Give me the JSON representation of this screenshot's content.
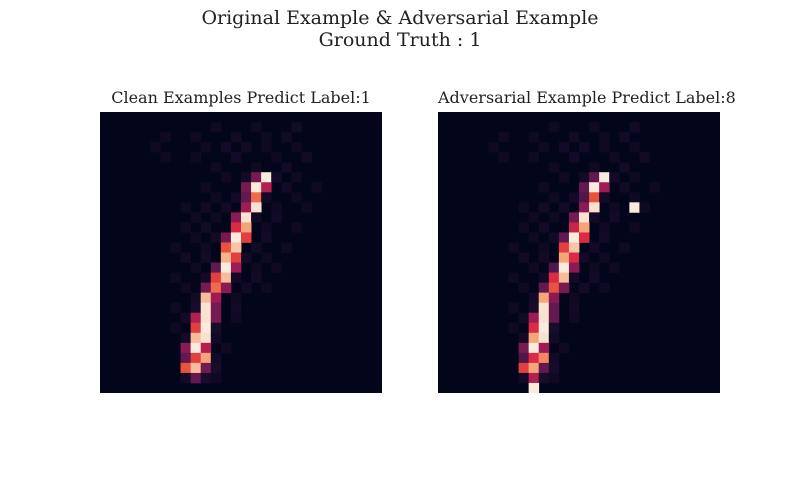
{
  "title_line1": "Original Example & Adversarial Example",
  "title_line2": "Ground Truth : 1",
  "colors": {
    "colormap": "rocket",
    "low": "#03051a",
    "mid": "#cb1b4f",
    "high": "#faebdd"
  },
  "chart_data": [
    {
      "type": "heatmap",
      "title": "Clean Examples Predict Label:1",
      "rows": 28,
      "cols": 28,
      "value_range": [
        0,
        1
      ],
      "axes_visible": false,
      "background_value": 0,
      "cells": [
        [
          1,
          11,
          0.05
        ],
        [
          1,
          15,
          0.05
        ],
        [
          1,
          19,
          0.06
        ],
        [
          2,
          6,
          0.05
        ],
        [
          2,
          9,
          0.05
        ],
        [
          2,
          13,
          0.06
        ],
        [
          2,
          16,
          0.05
        ],
        [
          2,
          18,
          0.06
        ],
        [
          3,
          5,
          0.05
        ],
        [
          3,
          10,
          0.05
        ],
        [
          3,
          12,
          0.06
        ],
        [
          3,
          14,
          0.06
        ],
        [
          3,
          16,
          0.05
        ],
        [
          3,
          19,
          0.05
        ],
        [
          4,
          6,
          0.05
        ],
        [
          4,
          9,
          0.05
        ],
        [
          4,
          13,
          0.06
        ],
        [
          4,
          17,
          0.05
        ],
        [
          4,
          20,
          0.06
        ],
        [
          5,
          11,
          0.05
        ],
        [
          5,
          15,
          0.05
        ],
        [
          5,
          18,
          0.06
        ],
        [
          6,
          12,
          0.05
        ],
        [
          6,
          14,
          0.06
        ],
        [
          6,
          15,
          0.35
        ],
        [
          6,
          16,
          1.0
        ],
        [
          6,
          17,
          0.06
        ],
        [
          6,
          19,
          0.05
        ],
        [
          7,
          10,
          0.05
        ],
        [
          7,
          14,
          0.35
        ],
        [
          7,
          15,
          1.0
        ],
        [
          7,
          16,
          0.5
        ],
        [
          7,
          18,
          0.06
        ],
        [
          7,
          21,
          0.05
        ],
        [
          8,
          11,
          0.05
        ],
        [
          8,
          13,
          0.06
        ],
        [
          8,
          14,
          0.3
        ],
        [
          8,
          15,
          0.75
        ],
        [
          8,
          16,
          0.06
        ],
        [
          8,
          19,
          0.05
        ],
        [
          9,
          8,
          0.05
        ],
        [
          9,
          10,
          0.06
        ],
        [
          9,
          12,
          0.06
        ],
        [
          9,
          14,
          0.45
        ],
        [
          9,
          15,
          0.98
        ],
        [
          9,
          17,
          0.05
        ],
        [
          9,
          20,
          0.05
        ],
        [
          10,
          9,
          0.05
        ],
        [
          10,
          11,
          0.05
        ],
        [
          10,
          13,
          0.4
        ],
        [
          10,
          14,
          0.98
        ],
        [
          10,
          15,
          0.06
        ],
        [
          10,
          17,
          0.06
        ],
        [
          11,
          8,
          0.05
        ],
        [
          11,
          10,
          0.06
        ],
        [
          11,
          13,
          0.6
        ],
        [
          11,
          14,
          0.85
        ],
        [
          11,
          16,
          0.05
        ],
        [
          11,
          19,
          0.05
        ],
        [
          12,
          9,
          0.05
        ],
        [
          12,
          11,
          0.06
        ],
        [
          12,
          12,
          0.35
        ],
        [
          12,
          13,
          1.0
        ],
        [
          12,
          14,
          0.65
        ],
        [
          12,
          16,
          0.06
        ],
        [
          13,
          7,
          0.05
        ],
        [
          13,
          10,
          0.05
        ],
        [
          13,
          12,
          0.7
        ],
        [
          13,
          13,
          0.92
        ],
        [
          13,
          15,
          0.06
        ],
        [
          13,
          18,
          0.05
        ],
        [
          14,
          8,
          0.06
        ],
        [
          14,
          10,
          0.06
        ],
        [
          14,
          12,
          0.88
        ],
        [
          14,
          13,
          0.65
        ],
        [
          14,
          14,
          0.06
        ],
        [
          14,
          16,
          0.05
        ],
        [
          15,
          9,
          0.05
        ],
        [
          15,
          11,
          0.3
        ],
        [
          15,
          12,
          1.0
        ],
        [
          15,
          13,
          0.45
        ],
        [
          15,
          15,
          0.05
        ],
        [
          15,
          17,
          0.05
        ],
        [
          16,
          7,
          0.05
        ],
        [
          16,
          10,
          0.06
        ],
        [
          16,
          11,
          0.65
        ],
        [
          16,
          12,
          0.9
        ],
        [
          16,
          13,
          0.06
        ],
        [
          16,
          15,
          0.06
        ],
        [
          17,
          8,
          0.05
        ],
        [
          17,
          10,
          0.35
        ],
        [
          17,
          11,
          0.75
        ],
        [
          17,
          12,
          0.4
        ],
        [
          17,
          14,
          0.06
        ],
        [
          17,
          16,
          0.05
        ],
        [
          18,
          9,
          0.06
        ],
        [
          18,
          10,
          0.9
        ],
        [
          18,
          11,
          0.45
        ],
        [
          18,
          13,
          0.05
        ],
        [
          19,
          7,
          0.05
        ],
        [
          19,
          9,
          0.08
        ],
        [
          19,
          10,
          0.98
        ],
        [
          19,
          11,
          0.35
        ],
        [
          19,
          13,
          0.06
        ],
        [
          20,
          8,
          0.06
        ],
        [
          20,
          9,
          0.5
        ],
        [
          20,
          10,
          0.98
        ],
        [
          20,
          11,
          0.35
        ],
        [
          20,
          13,
          0.05
        ],
        [
          21,
          7,
          0.05
        ],
        [
          21,
          9,
          0.65
        ],
        [
          21,
          10,
          1.0
        ],
        [
          21,
          11,
          0.08
        ],
        [
          22,
          8,
          0.06
        ],
        [
          22,
          9,
          0.9
        ],
        [
          22,
          10,
          0.98
        ],
        [
          22,
          11,
          0.06
        ],
        [
          23,
          8,
          0.4
        ],
        [
          23,
          9,
          1.0
        ],
        [
          23,
          10,
          0.5
        ],
        [
          23,
          12,
          0.05
        ],
        [
          24,
          8,
          0.3
        ],
        [
          24,
          9,
          0.65
        ],
        [
          24,
          10,
          0.85
        ],
        [
          24,
          11,
          0.06
        ],
        [
          25,
          8,
          0.7
        ],
        [
          25,
          9,
          0.9
        ],
        [
          25,
          10,
          0.35
        ],
        [
          25,
          11,
          0.08
        ],
        [
          26,
          8,
          0.06
        ],
        [
          26,
          9,
          0.3
        ],
        [
          26,
          10,
          0.08
        ],
        [
          26,
          11,
          0.05
        ]
      ]
    },
    {
      "type": "heatmap",
      "title": "Adversarial Example Predict Label:8",
      "rows": 28,
      "cols": 28,
      "value_range": [
        0,
        1
      ],
      "axes_visible": false,
      "background_value": 0,
      "cells": [
        [
          1,
          11,
          0.05
        ],
        [
          1,
          15,
          0.05
        ],
        [
          1,
          19,
          0.06
        ],
        [
          2,
          6,
          0.05
        ],
        [
          2,
          9,
          0.05
        ],
        [
          2,
          13,
          0.06
        ],
        [
          2,
          16,
          0.05
        ],
        [
          2,
          18,
          0.06
        ],
        [
          3,
          5,
          0.05
        ],
        [
          3,
          10,
          0.05
        ],
        [
          3,
          12,
          0.06
        ],
        [
          3,
          14,
          0.06
        ],
        [
          3,
          16,
          0.05
        ],
        [
          3,
          19,
          0.05
        ],
        [
          4,
          6,
          0.05
        ],
        [
          4,
          9,
          0.05
        ],
        [
          4,
          13,
          0.06
        ],
        [
          4,
          17,
          0.05
        ],
        [
          4,
          20,
          0.06
        ],
        [
          5,
          11,
          0.05
        ],
        [
          5,
          15,
          0.05
        ],
        [
          5,
          18,
          0.06
        ],
        [
          6,
          12,
          0.05
        ],
        [
          6,
          14,
          0.06
        ],
        [
          6,
          15,
          0.3
        ],
        [
          6,
          16,
          1.0
        ],
        [
          6,
          17,
          0.06
        ],
        [
          6,
          19,
          0.05
        ],
        [
          7,
          10,
          0.05
        ],
        [
          7,
          14,
          0.3
        ],
        [
          7,
          15,
          1.0
        ],
        [
          7,
          16,
          0.45
        ],
        [
          7,
          18,
          0.06
        ],
        [
          7,
          21,
          0.05
        ],
        [
          8,
          11,
          0.05
        ],
        [
          8,
          13,
          0.06
        ],
        [
          8,
          14,
          0.25
        ],
        [
          8,
          15,
          0.7
        ],
        [
          8,
          16,
          0.06
        ],
        [
          8,
          19,
          0.05
        ],
        [
          9,
          8,
          0.05
        ],
        [
          9,
          10,
          0.06
        ],
        [
          9,
          12,
          0.06
        ],
        [
          9,
          14,
          0.4
        ],
        [
          9,
          15,
          0.98
        ],
        [
          9,
          17,
          0.05
        ],
        [
          9,
          19,
          1.0
        ],
        [
          9,
          20,
          0.05
        ],
        [
          10,
          9,
          0.05
        ],
        [
          10,
          11,
          0.05
        ],
        [
          10,
          13,
          0.35
        ],
        [
          10,
          14,
          0.98
        ],
        [
          10,
          15,
          0.06
        ],
        [
          10,
          17,
          0.06
        ],
        [
          11,
          8,
          0.05
        ],
        [
          11,
          10,
          0.06
        ],
        [
          11,
          13,
          0.55
        ],
        [
          11,
          14,
          0.85
        ],
        [
          11,
          16,
          0.05
        ],
        [
          11,
          19,
          0.05
        ],
        [
          12,
          9,
          0.05
        ],
        [
          12,
          11,
          0.06
        ],
        [
          12,
          12,
          0.3
        ],
        [
          12,
          13,
          1.0
        ],
        [
          12,
          14,
          0.6
        ],
        [
          12,
          16,
          0.06
        ],
        [
          13,
          7,
          0.05
        ],
        [
          13,
          10,
          0.05
        ],
        [
          13,
          12,
          0.65
        ],
        [
          13,
          13,
          0.92
        ],
        [
          13,
          15,
          0.06
        ],
        [
          13,
          18,
          0.05
        ],
        [
          14,
          8,
          0.06
        ],
        [
          14,
          10,
          0.06
        ],
        [
          14,
          12,
          0.85
        ],
        [
          14,
          13,
          0.6
        ],
        [
          14,
          14,
          0.06
        ],
        [
          14,
          16,
          0.05
        ],
        [
          15,
          9,
          0.05
        ],
        [
          15,
          11,
          0.25
        ],
        [
          15,
          12,
          1.0
        ],
        [
          15,
          13,
          0.4
        ],
        [
          15,
          15,
          0.05
        ],
        [
          15,
          17,
          0.05
        ],
        [
          16,
          7,
          0.05
        ],
        [
          16,
          10,
          0.06
        ],
        [
          16,
          11,
          0.6
        ],
        [
          16,
          12,
          0.9
        ],
        [
          16,
          13,
          0.06
        ],
        [
          16,
          15,
          0.06
        ],
        [
          17,
          8,
          0.05
        ],
        [
          17,
          10,
          0.3
        ],
        [
          17,
          11,
          0.7
        ],
        [
          17,
          12,
          0.35
        ],
        [
          17,
          14,
          0.06
        ],
        [
          17,
          16,
          0.05
        ],
        [
          18,
          9,
          0.06
        ],
        [
          18,
          10,
          0.85
        ],
        [
          18,
          11,
          0.4
        ],
        [
          18,
          13,
          0.05
        ],
        [
          19,
          7,
          0.05
        ],
        [
          19,
          9,
          0.08
        ],
        [
          19,
          10,
          0.98
        ],
        [
          19,
          11,
          0.3
        ],
        [
          19,
          13,
          0.06
        ],
        [
          20,
          8,
          0.06
        ],
        [
          20,
          9,
          0.45
        ],
        [
          20,
          10,
          0.98
        ],
        [
          20,
          11,
          0.3
        ],
        [
          20,
          13,
          0.05
        ],
        [
          21,
          7,
          0.05
        ],
        [
          21,
          9,
          0.6
        ],
        [
          21,
          10,
          1.0
        ],
        [
          21,
          11,
          0.08
        ],
        [
          22,
          8,
          0.06
        ],
        [
          22,
          9,
          0.85
        ],
        [
          22,
          10,
          0.98
        ],
        [
          22,
          11,
          0.06
        ],
        [
          23,
          8,
          0.35
        ],
        [
          23,
          9,
          1.0
        ],
        [
          23,
          10,
          0.45
        ],
        [
          23,
          12,
          0.05
        ],
        [
          24,
          8,
          0.25
        ],
        [
          24,
          9,
          0.6
        ],
        [
          24,
          10,
          0.8
        ],
        [
          24,
          11,
          0.06
        ],
        [
          25,
          8,
          0.65
        ],
        [
          25,
          9,
          0.85
        ],
        [
          25,
          10,
          0.3
        ],
        [
          25,
          11,
          0.08
        ],
        [
          26,
          8,
          0.06
        ],
        [
          26,
          9,
          0.5
        ],
        [
          26,
          10,
          0.08
        ],
        [
          26,
          11,
          0.05
        ],
        [
          27,
          9,
          1.0
        ]
      ]
    }
  ]
}
